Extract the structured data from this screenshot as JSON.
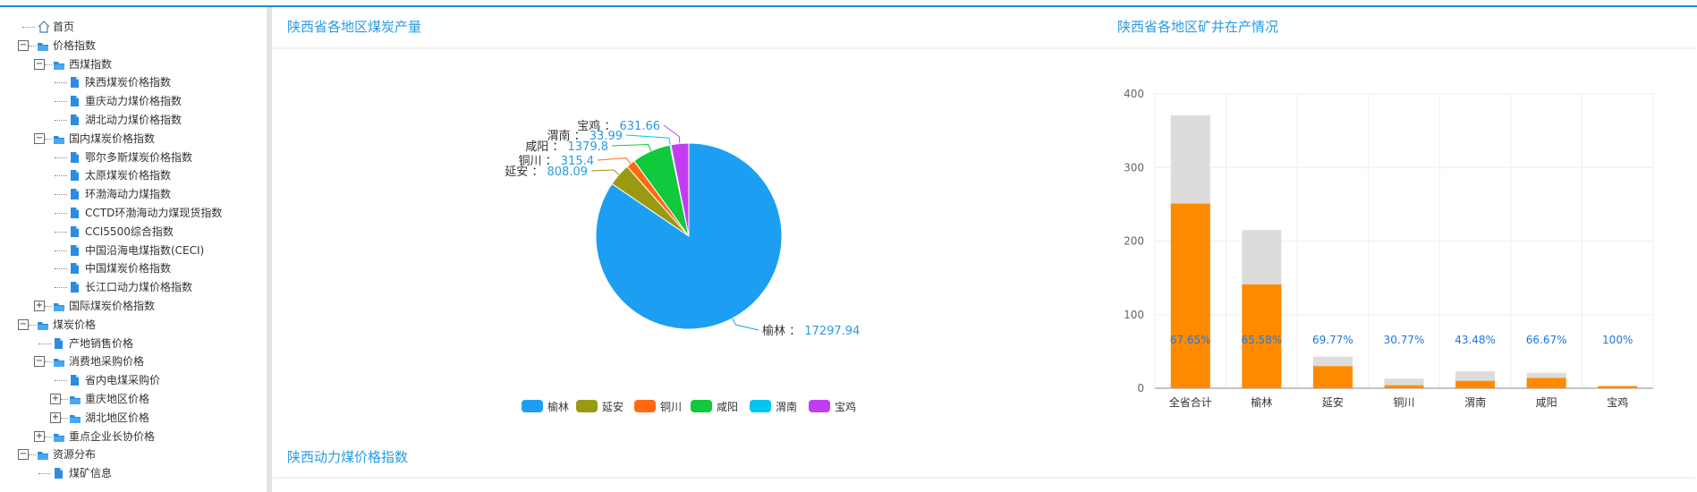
{
  "tree": [
    {
      "label": "首页",
      "level": 0,
      "icon": "home",
      "toggle": null
    },
    {
      "label": "价格指数",
      "level": 0,
      "icon": "folder",
      "toggle": "minus"
    },
    {
      "label": "西煤指数",
      "level": 1,
      "icon": "folder",
      "toggle": "minus"
    },
    {
      "label": "陕西煤炭价格指数",
      "level": 2,
      "icon": "file",
      "toggle": null
    },
    {
      "label": "重庆动力煤价格指数",
      "level": 2,
      "icon": "file",
      "toggle": null
    },
    {
      "label": "湖北动力煤价格指数",
      "level": 2,
      "icon": "file",
      "toggle": null
    },
    {
      "label": "国内煤炭价格指数",
      "level": 1,
      "icon": "folder",
      "toggle": "minus"
    },
    {
      "label": "鄂尔多斯煤炭价格指数",
      "level": 2,
      "icon": "file",
      "toggle": null
    },
    {
      "label": "太原煤炭价格指数",
      "level": 2,
      "icon": "file",
      "toggle": null
    },
    {
      "label": "环渤海动力煤指数",
      "level": 2,
      "icon": "file",
      "toggle": null
    },
    {
      "label": "CCTD环渤海动力煤现货指数",
      "level": 2,
      "icon": "file",
      "toggle": null
    },
    {
      "label": "CCI5500综合指数",
      "level": 2,
      "icon": "file",
      "toggle": null
    },
    {
      "label": "中国沿海电煤指数(CECI)",
      "level": 2,
      "icon": "file",
      "toggle": null
    },
    {
      "label": "中国煤炭价格指数",
      "level": 2,
      "icon": "file",
      "toggle": null
    },
    {
      "label": "长江口动力煤价格指数",
      "level": 2,
      "icon": "file",
      "toggle": null
    },
    {
      "label": "国际煤炭价格指数",
      "level": 1,
      "icon": "folder",
      "toggle": "plus"
    },
    {
      "label": "煤炭价格",
      "level": 0,
      "icon": "folder",
      "toggle": "minus"
    },
    {
      "label": "产地销售价格",
      "level": 1,
      "icon": "file",
      "toggle": null
    },
    {
      "label": "消费地采购价格",
      "level": 1,
      "icon": "folder",
      "toggle": "minus"
    },
    {
      "label": "省内电煤采购价",
      "level": 2,
      "icon": "file",
      "toggle": null
    },
    {
      "label": "重庆地区价格",
      "level": 2,
      "icon": "folder",
      "toggle": "plus"
    },
    {
      "label": "湖北地区价格",
      "level": 2,
      "icon": "folder",
      "toggle": "plus"
    },
    {
      "label": "重点企业长协价格",
      "level": 1,
      "icon": "folder",
      "toggle": "plus"
    },
    {
      "label": "资源分布",
      "level": 0,
      "icon": "folder",
      "toggle": "minus"
    },
    {
      "label": "煤矿信息",
      "level": 1,
      "icon": "file",
      "toggle": null
    }
  ],
  "panels": {
    "bottom_title": "陕西动力煤价格指数"
  },
  "chart_data": [
    {
      "type": "pie",
      "title": "陕西省各地区煤炭产量",
      "label_separator": "：",
      "categories": [
        "榆林",
        "延安",
        "铜川",
        "咸阳",
        "渭南",
        "宝鸡"
      ],
      "values": [
        17297.94,
        808.09,
        315.4,
        1379.8,
        33.99,
        631.66
      ],
      "colors": [
        "#1c9ef2",
        "#9a9a12",
        "#ff6a10",
        "#10c93c",
        "#00c5ee",
        "#c43cf2"
      ],
      "legend": "bottom"
    },
    {
      "type": "bar",
      "title": "陕西省各地区矿井在产情况",
      "categories": [
        "全省合计",
        "榆林",
        "延安",
        "铜川",
        "渭南",
        "咸阳",
        "宝鸡"
      ],
      "series": [
        {
          "color": "#dcdcdc",
          "values": [
            371,
            215,
            43,
            13,
            23,
            21,
            3
          ]
        },
        {
          "color": "#ff8a00",
          "values": [
            251,
            141,
            30,
            4,
            10,
            14,
            3
          ]
        }
      ],
      "annotations": [
        "67.65%",
        "65.58%",
        "69.77%",
        "30.77%",
        "43.48%",
        "66.67%",
        "100%"
      ],
      "ylim": [
        0,
        400
      ],
      "yticks": [
        0,
        100,
        200,
        300,
        400
      ],
      "grid": true,
      "overlap": true
    }
  ]
}
